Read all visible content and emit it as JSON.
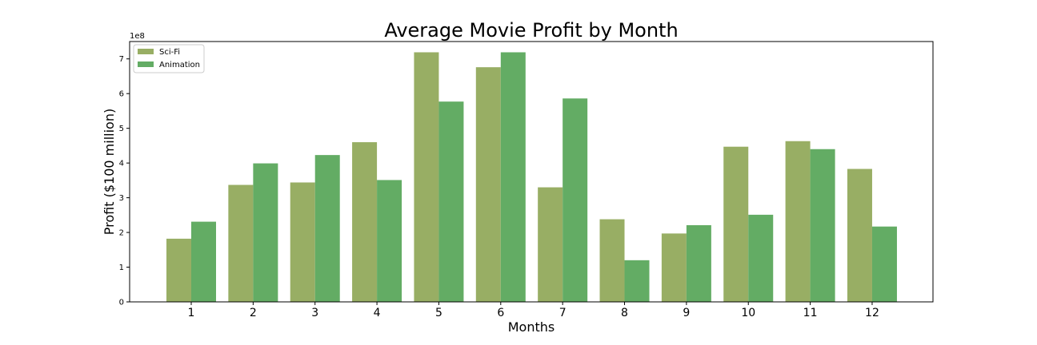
{
  "chart_data": {
    "type": "bar",
    "title": "Average Movie Profit by Month",
    "xlabel": "Months",
    "ylabel": "Profit ($100 million)",
    "y_offset_label": "1e8",
    "categories": [
      "1",
      "2",
      "3",
      "4",
      "5",
      "6",
      "7",
      "8",
      "9",
      "10",
      "11",
      "12"
    ],
    "ylim": [
      0,
      7.5
    ],
    "yticks": [
      "0",
      "1",
      "2",
      "3",
      "4",
      "5",
      "6",
      "7"
    ],
    "legend_position": "upper-left",
    "grid": false,
    "series": [
      {
        "name": "Sci-Fi",
        "color": "#98ae64",
        "values": [
          1.82,
          3.37,
          3.44,
          4.6,
          7.19,
          6.76,
          3.3,
          2.38,
          1.97,
          4.47,
          4.63,
          3.83
        ]
      },
      {
        "name": "Animation",
        "color": "#63ac64",
        "values": [
          2.31,
          3.99,
          4.23,
          3.51,
          5.77,
          7.19,
          5.86,
          1.2,
          2.21,
          2.51,
          4.4,
          2.17
        ]
      }
    ]
  }
}
